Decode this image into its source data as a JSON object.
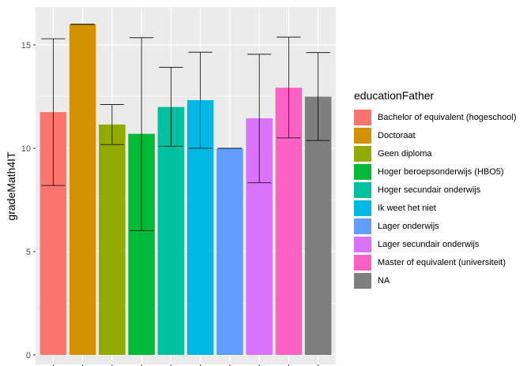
{
  "chart_data": {
    "type": "bar",
    "ylabel": "gradeMath4IT",
    "xlabel": "",
    "ylim": [
      0,
      16.8
    ],
    "yticks": [
      0,
      5,
      10,
      15
    ],
    "legend_title": "educationFather",
    "legend_position": "right",
    "grid": true,
    "categories": [
      "Bachelor of equivalent (hogeschool)",
      "Doctoraat",
      "Geen diploma",
      "Hoger beroepsonderwijs (HBO5)",
      "Hoger secundair onderwijs",
      "Ik weet het niet",
      "Lager onderwijs",
      "Lager secundair onderwijs",
      "Master of equivalent (universiteit)",
      "NA"
    ],
    "values": [
      11.75,
      16.0,
      11.15,
      10.7,
      12.0,
      12.33,
      10.0,
      11.45,
      12.93,
      12.5
    ],
    "error_low": [
      8.2,
      16.0,
      10.18,
      6.02,
      10.1,
      10.0,
      10.0,
      8.33,
      10.5,
      10.38
    ],
    "error_high": [
      15.3,
      16.0,
      12.12,
      15.35,
      13.92,
      14.65,
      10.0,
      14.55,
      15.38,
      14.63
    ],
    "colors": [
      "#F8766D",
      "#D39200",
      "#93AA00",
      "#00BA38",
      "#00C19F",
      "#00B9E3",
      "#619CFF",
      "#DB72FB",
      "#FF61C3",
      "#7F7F7F"
    ]
  }
}
